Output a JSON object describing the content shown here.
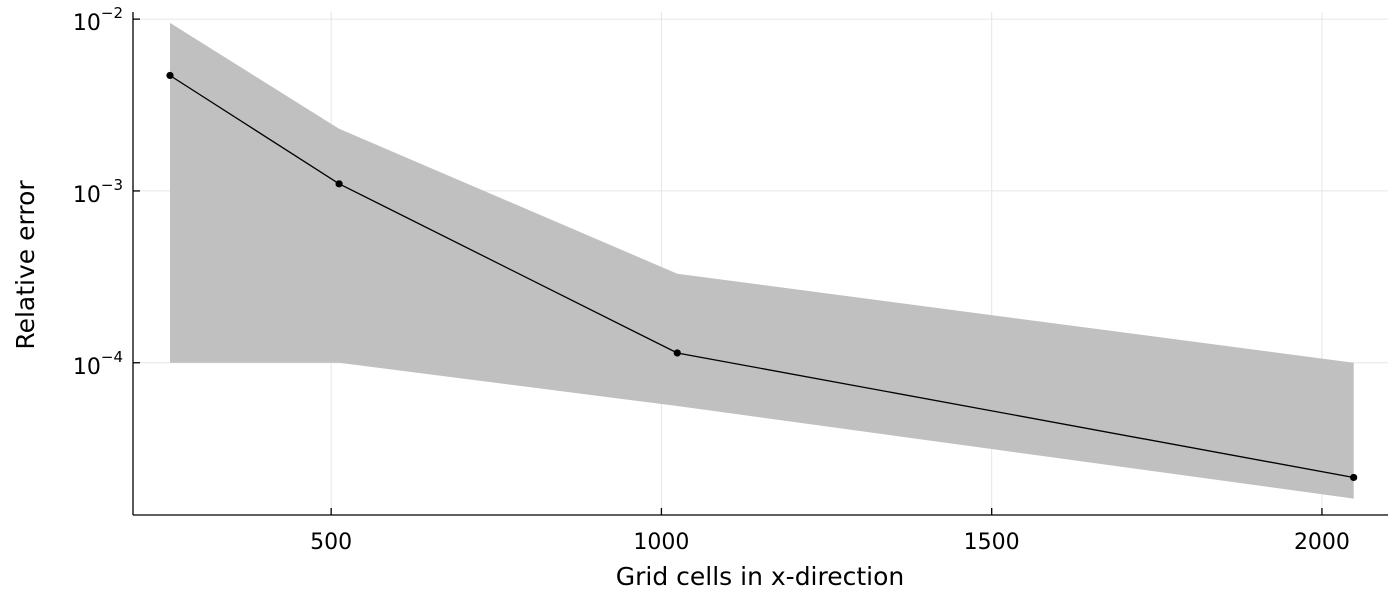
{
  "chart_data": {
    "type": "line",
    "title": "",
    "xlabel": "Grid cells in x-direction",
    "ylabel": "Relative error",
    "xlim": [
      200,
      2100
    ],
    "ylim": [
      1.3e-05,
      0.011
    ],
    "yscale": "log",
    "grid": true,
    "legend": "none",
    "xticks": [
      {
        "value": 500,
        "label": "500"
      },
      {
        "value": 1000,
        "label": "1000"
      },
      {
        "value": 1500,
        "label": "1500"
      },
      {
        "value": 2000,
        "label": "2000"
      }
    ],
    "yticks": [
      {
        "value": 0.01,
        "base": "10",
        "exp": "−2"
      },
      {
        "value": 0.001,
        "base": "10",
        "exp": "−3"
      },
      {
        "value": 0.0001,
        "base": "10",
        "exp": "−4"
      }
    ],
    "series": [
      {
        "name": "relative error",
        "x": [
          256,
          512,
          1024,
          2048
        ],
        "y": [
          0.0047,
          0.0011,
          0.000114,
          2.15e-05
        ],
        "line_color": "#000000",
        "marker_color": "#000000",
        "band": {
          "lower": [
            0.0001,
            0.0001,
            5.6e-05,
            1.62e-05
          ],
          "upper": [
            0.0095,
            0.0023,
            0.00033,
            0.0001
          ],
          "color": "#c0c0c0"
        }
      }
    ]
  }
}
